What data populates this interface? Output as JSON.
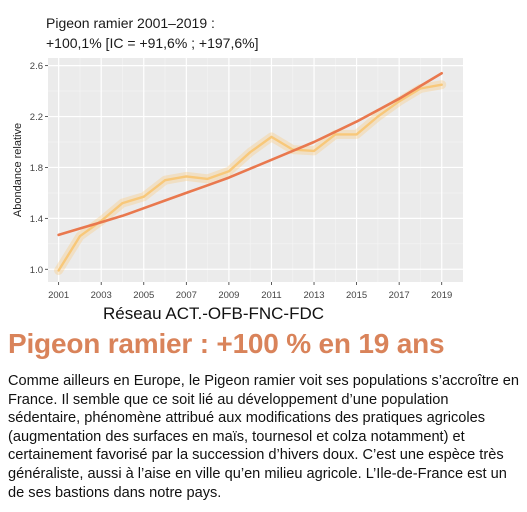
{
  "chart_data": {
    "type": "line",
    "title": "Pigeon ramier 2001–2019 :",
    "subtitle": "+100,1% [IC = +91,6% ; +197,6%]",
    "xlabel": "",
    "ylabel": "Abondance relative",
    "xlim": [
      2000.5,
      2020
    ],
    "ylim": [
      0.9,
      2.66
    ],
    "x_ticks": [
      "2001",
      "2003",
      "2005",
      "2007",
      "2009",
      "2011",
      "2013",
      "2015",
      "2017",
      "2019"
    ],
    "y_ticks": [
      "1.0",
      "1.4",
      "1.8",
      "2.2",
      "2.6"
    ],
    "grid": true,
    "legend": "none",
    "series": [
      {
        "role": "annual-index",
        "color": "#f8c87a",
        "x": [
          2001,
          2002,
          2003,
          2004,
          2005,
          2006,
          2007,
          2008,
          2009,
          2010,
          2011,
          2012,
          2013,
          2014,
          2015,
          2016,
          2017,
          2018,
          2019
        ],
        "y": [
          0.99,
          1.26,
          1.38,
          1.52,
          1.57,
          1.7,
          1.73,
          1.71,
          1.77,
          1.92,
          2.04,
          1.94,
          1.93,
          2.06,
          2.06,
          2.2,
          2.32,
          2.42,
          2.45
        ]
      },
      {
        "role": "trend",
        "color": "#e9784e",
        "x": [
          2001,
          2002,
          2003,
          2004,
          2005,
          2006,
          2007,
          2008,
          2009,
          2010,
          2011,
          2012,
          2013,
          2014,
          2015,
          2016,
          2017,
          2018,
          2019
        ],
        "y": [
          1.27,
          1.32,
          1.37,
          1.42,
          1.48,
          1.54,
          1.6,
          1.66,
          1.72,
          1.79,
          1.86,
          1.93,
          2.0,
          2.08,
          2.16,
          2.25,
          2.34,
          2.44,
          2.54
        ]
      }
    ]
  },
  "caption": "Réseau ACT.-OFB-FNC-FDC",
  "article": {
    "heading": "Pigeon ramier : +100 % en 19 ans",
    "body": "Comme ailleurs en Europe, le Pigeon ramier voit ses populations s’accroître en France. Il semble que ce soit lié au développement d’une population sédentaire, phénomène attribué aux modifications des pratiques agricoles (augmentation des surfaces en maïs, tournesol et colza notamment) et certainement favorisé par la succession d’hivers doux. C’est une espèce très généraliste, aussi à l’aise en ville qu’en milieu agricole. L’Ile-de-France est un de ses bastions dans notre pays."
  }
}
